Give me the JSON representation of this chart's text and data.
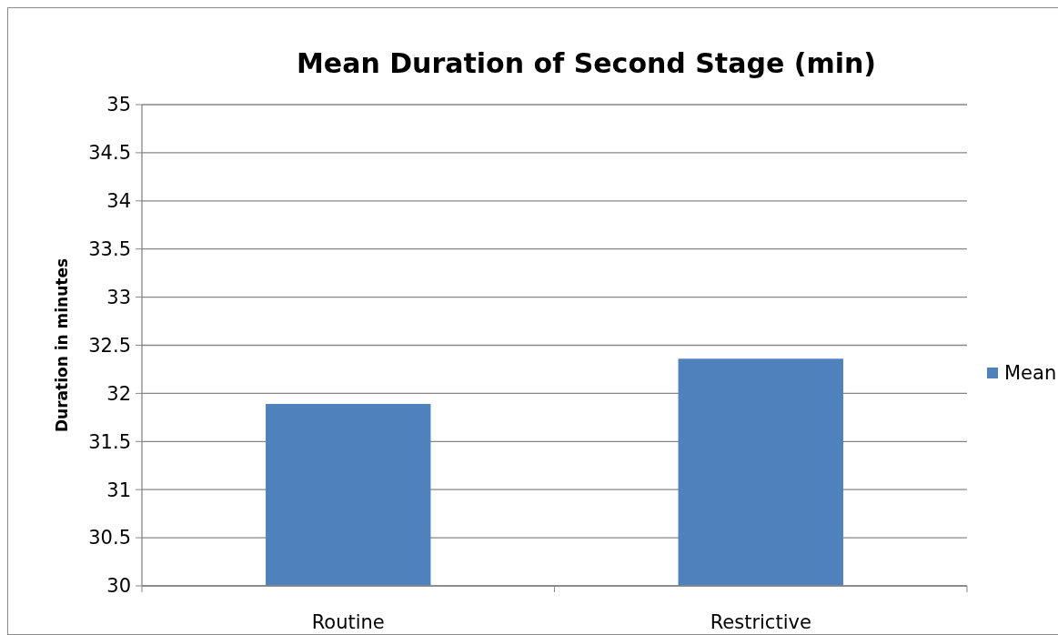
{
  "chart_data": {
    "type": "bar",
    "title": "Mean Duration of Second Stage (min)",
    "ylabel": "Duration in minutes",
    "categories": [
      "Routine",
      "Restrictive"
    ],
    "series": [
      {
        "name": "Mean",
        "color": "#4f81bd",
        "values": [
          31.89,
          32.36
        ]
      }
    ],
    "ylim": [
      30,
      35
    ],
    "yticks": [
      30,
      30.5,
      31,
      31.5,
      32,
      32.5,
      33,
      33.5,
      34,
      34.5,
      35
    ],
    "grid": "y",
    "legend": "right"
  }
}
